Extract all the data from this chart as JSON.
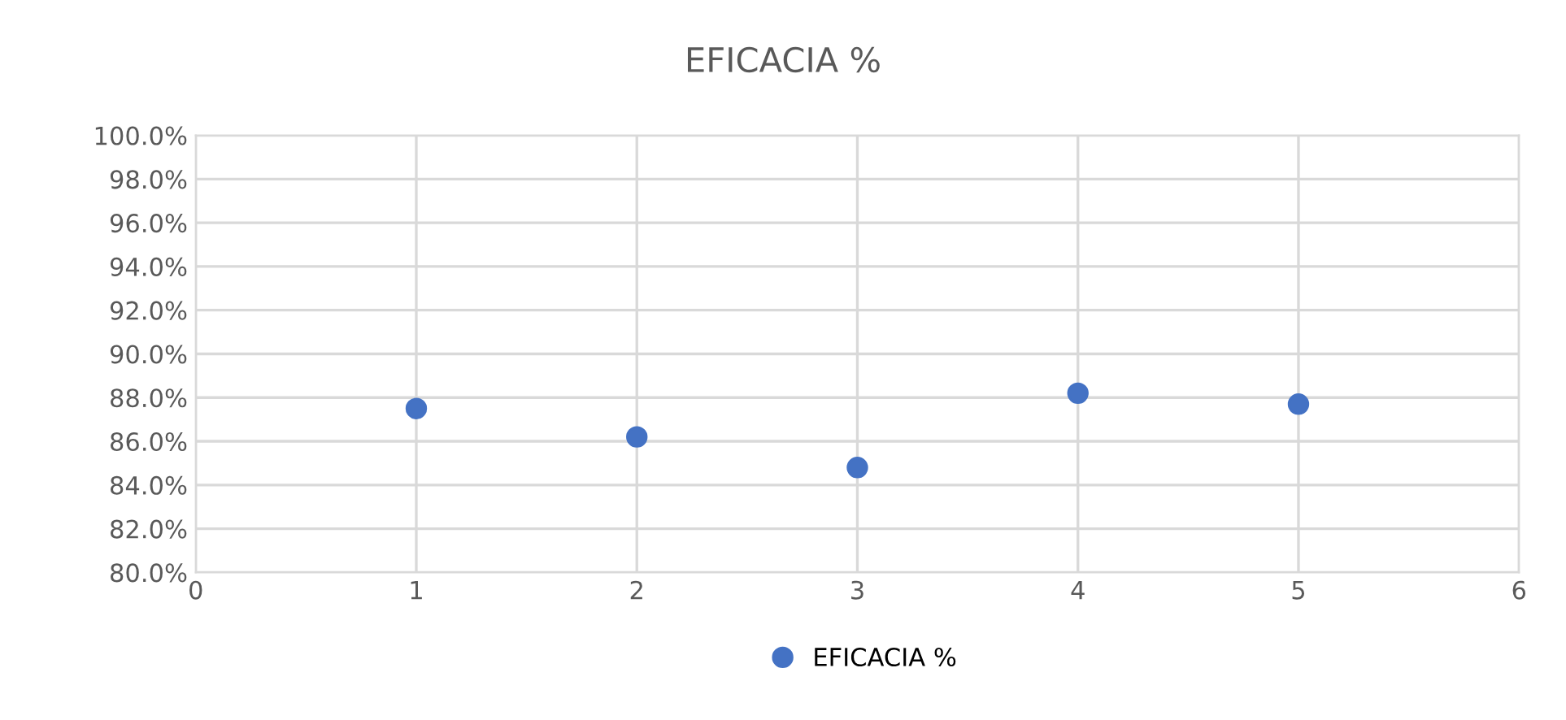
{
  "chart_data": {
    "type": "scatter",
    "title": "EFICACIA %",
    "x": [
      1,
      2,
      3,
      4,
      5
    ],
    "series": [
      {
        "name": "EFICACIA %",
        "color": "#4472c4",
        "values": [
          87.5,
          86.2,
          84.8,
          88.2,
          87.7
        ]
      }
    ],
    "xlim": [
      0,
      6
    ],
    "xticks": [
      0,
      1,
      2,
      3,
      4,
      5,
      6
    ],
    "ylim": [
      80,
      100
    ],
    "yticks": [
      {
        "value": 80,
        "label": "80.0%"
      },
      {
        "value": 82,
        "label": "82.0%"
      },
      {
        "value": 84,
        "label": "84.0%"
      },
      {
        "value": 86,
        "label": "86.0%"
      },
      {
        "value": 88,
        "label": "88.0%"
      },
      {
        "value": 90,
        "label": "90.0%"
      },
      {
        "value": 92,
        "label": "92.0%"
      },
      {
        "value": 94,
        "label": "94.0%"
      },
      {
        "value": 96,
        "label": "96.0%"
      },
      {
        "value": 98,
        "label": "98.0%"
      },
      {
        "value": 100,
        "label": "100.0%"
      }
    ],
    "grid": true,
    "legend": "bottom",
    "marker": "circle"
  }
}
